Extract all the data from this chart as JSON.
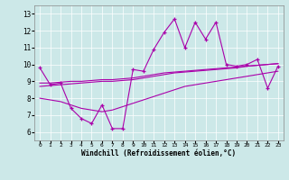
{
  "title": "",
  "xlabel": "Windchill (Refroidissement éolien,°C)",
  "ylabel": "",
  "bg_color": "#cce8e8",
  "line_color": "#aa00aa",
  "xlim": [
    -0.5,
    23.5
  ],
  "ylim": [
    5.5,
    13.5
  ],
  "xticks": [
    0,
    1,
    2,
    3,
    4,
    5,
    6,
    7,
    8,
    9,
    10,
    11,
    12,
    13,
    14,
    15,
    16,
    17,
    18,
    19,
    20,
    21,
    22,
    23
  ],
  "yticks": [
    6,
    7,
    8,
    9,
    10,
    11,
    12,
    13
  ],
  "main_line": [
    9.8,
    8.8,
    8.9,
    7.4,
    6.8,
    6.5,
    7.6,
    6.2,
    6.2,
    9.7,
    9.6,
    10.9,
    11.9,
    12.7,
    11.0,
    12.5,
    11.5,
    12.5,
    10.0,
    9.9,
    10.0,
    10.3,
    8.6,
    9.9
  ],
  "trend_upper1": [
    8.9,
    8.9,
    8.95,
    9.0,
    9.0,
    9.05,
    9.1,
    9.1,
    9.15,
    9.2,
    9.3,
    9.4,
    9.5,
    9.55,
    9.6,
    9.65,
    9.7,
    9.75,
    9.8,
    9.85,
    9.9,
    9.95,
    10.0,
    10.05
  ],
  "trend_upper2": [
    8.7,
    8.75,
    8.8,
    8.85,
    8.9,
    8.95,
    9.0,
    9.0,
    9.05,
    9.1,
    9.2,
    9.3,
    9.4,
    9.5,
    9.55,
    9.6,
    9.65,
    9.7,
    9.75,
    9.8,
    9.9,
    9.95,
    10.0,
    10.05
  ],
  "trend_lower": [
    8.0,
    7.9,
    7.8,
    7.6,
    7.4,
    7.3,
    7.2,
    7.3,
    7.5,
    7.7,
    7.9,
    8.1,
    8.3,
    8.5,
    8.7,
    8.8,
    8.9,
    9.0,
    9.1,
    9.2,
    9.3,
    9.4,
    9.5,
    9.6
  ]
}
